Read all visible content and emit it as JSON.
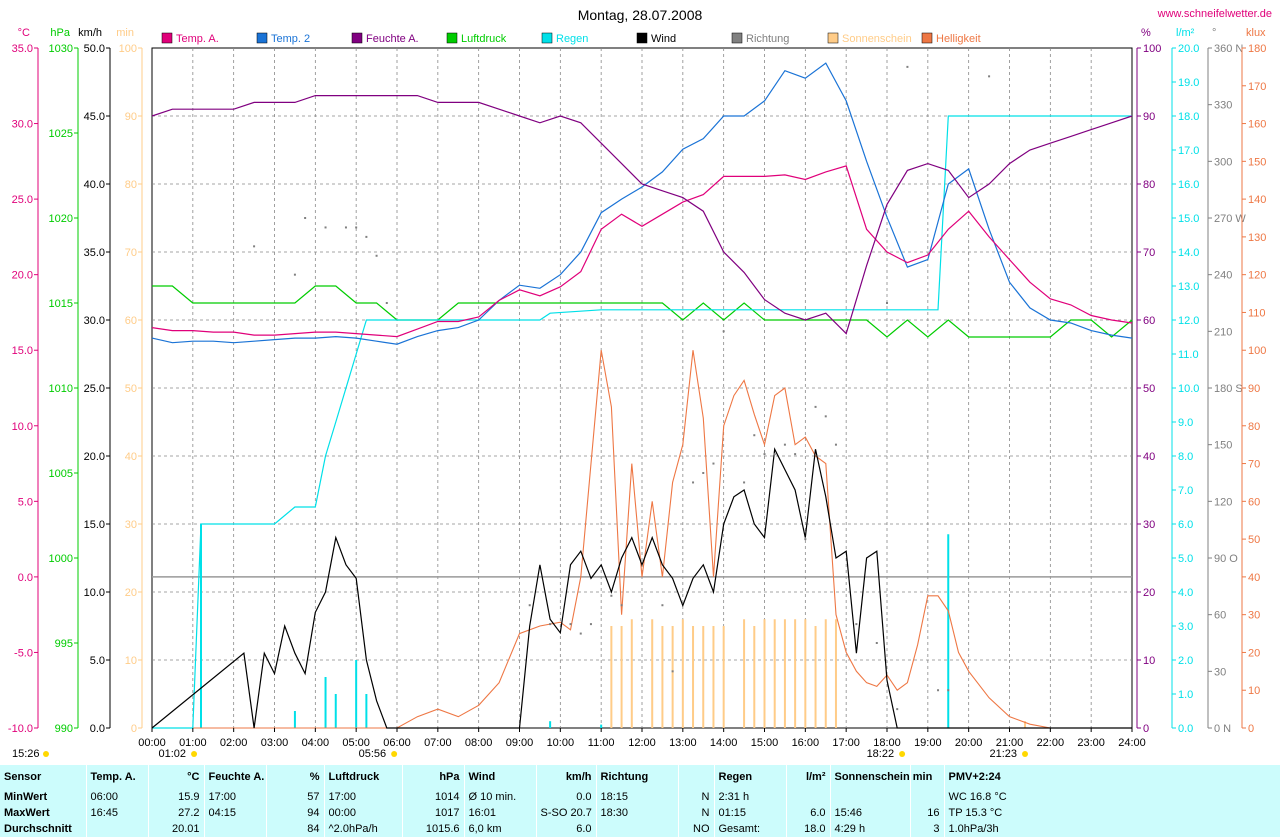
{
  "title": "Montag, 28.07.2008",
  "website": "www.schneifelwetter.de",
  "colors": {
    "temp_a": "#e0007a",
    "temp_2": "#1a73d6",
    "feuchte": "#800080",
    "luftdruck": "#00cc00",
    "regen": "#00e0e8",
    "wind": "#000000",
    "richtung": "#808080",
    "sonnenschein": "#ffcc88",
    "helligkeit": "#ee7744"
  },
  "legend": [
    {
      "label": "Temp. A.",
      "color": "#e0007a"
    },
    {
      "label": "Temp. 2",
      "color": "#1a73d6"
    },
    {
      "label": "Feuchte A.",
      "color": "#800080"
    },
    {
      "label": "Luftdruck",
      "color": "#00cc00"
    },
    {
      "label": "Regen",
      "color": "#00e0e8"
    },
    {
      "label": "Wind",
      "color": "#000000"
    },
    {
      "label": "Richtung",
      "color": "#808080"
    },
    {
      "label": "Sonnenschein",
      "color": "#ffcc88"
    },
    {
      "label": "Helligkeit",
      "color": "#ee7744"
    }
  ],
  "left_axes": [
    {
      "unit": "°C",
      "color": "#e0007a",
      "ticks": [
        "35.0",
        "30.0",
        "25.0",
        "20.0",
        "15.0",
        "10.0",
        "5.0",
        "0.0",
        "-5.0",
        "-10.0"
      ]
    },
    {
      "unit": "hPa",
      "color": "#00cc00",
      "ticks": [
        "1030",
        "1025",
        "1020",
        "1015",
        "1010",
        "1005",
        "1000",
        "995",
        "990"
      ]
    },
    {
      "unit": "km/h",
      "color": "#000000",
      "ticks": [
        "50.0",
        "45.0",
        "40.0",
        "35.0",
        "30.0",
        "25.0",
        "20.0",
        "15.0",
        "10.0",
        "5.0",
        "0.0"
      ]
    },
    {
      "unit": "min",
      "color": "#ffcc88",
      "ticks": [
        "100",
        "90",
        "80",
        "70",
        "60",
        "50",
        "40",
        "30",
        "20",
        "10",
        "0"
      ]
    }
  ],
  "right_axes": [
    {
      "unit": "%",
      "color": "#800080",
      "ticks": [
        "100",
        "90",
        "80",
        "70",
        "60",
        "50",
        "40",
        "30",
        "20",
        "10",
        "0"
      ]
    },
    {
      "unit": "l/m²",
      "color": "#00e0e8",
      "ticks": [
        "20.0",
        "19.0",
        "18.0",
        "17.0",
        "16.0",
        "15.0",
        "14.0",
        "13.0",
        "12.0",
        "11.0",
        "10.0",
        "9.0",
        "8.0",
        "7.0",
        "6.0",
        "5.0",
        "4.0",
        "3.0",
        "2.0",
        "1.0",
        "0.0"
      ]
    },
    {
      "unit": "°",
      "color": "#808080",
      "ticks": [
        "360 N",
        "330",
        "300",
        "270 W",
        "240",
        "210",
        "180 S",
        "150",
        "120",
        "90 O",
        "60",
        "30",
        "0 N"
      ]
    },
    {
      "unit": "klux",
      "color": "#ee7744",
      "ticks": [
        "180",
        "170",
        "160",
        "150",
        "140",
        "130",
        "120",
        "110",
        "100",
        "90",
        "80",
        "70",
        "60",
        "50",
        "40",
        "30",
        "20",
        "10",
        "0"
      ]
    }
  ],
  "x_ticks": [
    "00:00",
    "01:00",
    "02:00",
    "03:00",
    "04:00",
    "05:00",
    "06:00",
    "07:00",
    "08:00",
    "09:00",
    "10:00",
    "11:00",
    "12:00",
    "13:00",
    "14:00",
    "15:00",
    "16:00",
    "17:00",
    "18:00",
    "19:00",
    "20:00",
    "21:00",
    "22:00",
    "23:00",
    "24:00"
  ],
  "astro": [
    {
      "label": "15:26",
      "hour": -1.0
    },
    {
      "label": "01:02",
      "hour": 1.03
    },
    {
      "label": "05:56",
      "hour": 5.93
    },
    {
      "label": "18:22",
      "hour": 18.37
    },
    {
      "label": "21:23",
      "hour": 21.38
    }
  ],
  "chart_data": {
    "type": "line",
    "x_range_hours": [
      0,
      24
    ],
    "series": [
      {
        "name": "Temp. A.",
        "axis": "°C",
        "range": [
          -10,
          35
        ],
        "x": [
          0,
          0.5,
          1,
          1.5,
          2,
          2.5,
          3,
          3.5,
          4,
          4.5,
          5,
          5.5,
          6,
          6.5,
          7,
          7.5,
          8,
          8.5,
          9,
          9.5,
          10,
          10.5,
          11,
          11.5,
          12,
          12.5,
          13,
          13.5,
          14,
          14.5,
          15,
          15.5,
          16,
          16.5,
          17,
          17.5,
          18,
          18.5,
          19,
          19.5,
          20,
          20.5,
          21,
          21.5,
          22,
          22.5,
          23,
          23.5,
          24
        ],
        "y": [
          16.5,
          16.3,
          16.3,
          16.2,
          16.2,
          16.0,
          16.0,
          16.1,
          16.2,
          16.2,
          16.1,
          16.0,
          15.9,
          16.4,
          16.9,
          16.9,
          17.2,
          18.3,
          19.0,
          18.6,
          19.2,
          20.2,
          23.0,
          24.0,
          23.2,
          24.0,
          24.8,
          25.3,
          26.5,
          26.5,
          26.5,
          26.6,
          26.3,
          26.8,
          27.2,
          23.0,
          21.5,
          20.8,
          21.3,
          23.0,
          24.2,
          22.5,
          21.0,
          19.5,
          18.4,
          18.0,
          17.3,
          17.0,
          16.8
        ]
      },
      {
        "name": "Temp. 2",
        "axis": "°C",
        "range": [
          -10,
          35
        ],
        "x": [
          0,
          0.5,
          1,
          1.5,
          2,
          2.5,
          3,
          3.5,
          4,
          4.5,
          5,
          5.5,
          6,
          6.5,
          7,
          7.5,
          8,
          8.5,
          9,
          9.5,
          10,
          10.5,
          11,
          11.5,
          12,
          12.5,
          13,
          13.5,
          14,
          14.5,
          15,
          15.5,
          16,
          16.5,
          17,
          17.5,
          18,
          18.5,
          19,
          19.5,
          20,
          20.5,
          21,
          21.5,
          22,
          22.5,
          23,
          23.5,
          24
        ],
        "y": [
          15.8,
          15.5,
          15.6,
          15.6,
          15.5,
          15.6,
          15.7,
          15.8,
          15.8,
          15.9,
          15.8,
          15.6,
          15.4,
          15.9,
          16.3,
          16.5,
          17.0,
          18.3,
          19.3,
          19.1,
          20.0,
          21.5,
          24.1,
          25.0,
          25.8,
          26.8,
          28.3,
          29.0,
          30.5,
          30.5,
          31.5,
          33.5,
          33.0,
          34.0,
          31.5,
          27.5,
          23.8,
          20.5,
          21.0,
          26.0,
          27.0,
          23.0,
          19.5,
          17.8,
          17.0,
          16.8,
          16.3,
          16.0,
          15.8
        ]
      },
      {
        "name": "Feuchte A.",
        "axis": "%",
        "range": [
          0,
          100
        ],
        "x": [
          0,
          0.5,
          1,
          1.5,
          2,
          2.5,
          3,
          3.5,
          4,
          4.5,
          5,
          5.5,
          6,
          6.5,
          7,
          7.5,
          8,
          8.5,
          9,
          9.5,
          10,
          10.5,
          11,
          11.5,
          12,
          12.5,
          13,
          13.5,
          14,
          14.5,
          15,
          15.5,
          16,
          16.5,
          17,
          17.5,
          18,
          18.5,
          19,
          19.5,
          20,
          20.5,
          21,
          21.5,
          22,
          22.5,
          23,
          23.5,
          24
        ],
        "y": [
          90,
          91,
          91,
          91,
          91,
          92,
          92,
          92,
          93,
          93,
          93,
          93,
          93,
          93,
          92,
          92,
          92,
          91,
          90,
          89,
          90,
          89,
          86,
          83,
          80,
          79,
          78,
          76,
          70,
          67,
          63,
          61,
          60,
          61,
          58,
          68,
          77,
          82,
          83,
          82,
          78,
          80,
          83,
          85,
          86,
          87,
          88,
          89,
          90
        ]
      },
      {
        "name": "Luftdruck",
        "axis": "hPa",
        "range": [
          990,
          1030
        ],
        "x": [
          0,
          0.5,
          1,
          1.5,
          2,
          2.5,
          3,
          3.5,
          4,
          4.5,
          5,
          5.5,
          6,
          6.5,
          7,
          7.5,
          8,
          8.5,
          9,
          9.5,
          10,
          10.5,
          11,
          11.5,
          12,
          12.5,
          13,
          13.5,
          14,
          14.5,
          15,
          15.5,
          16,
          16.5,
          17,
          17.5,
          18,
          18.5,
          19,
          19.5,
          20,
          20.5,
          21,
          21.5,
          22,
          22.5,
          23,
          23.5,
          24
        ],
        "y": [
          1016,
          1016,
          1015,
          1015,
          1015,
          1015,
          1015,
          1015,
          1016,
          1016,
          1015,
          1015,
          1014,
          1014,
          1014,
          1015,
          1015,
          1015,
          1015,
          1015,
          1015,
          1015,
          1015,
          1015,
          1015,
          1015,
          1014,
          1015,
          1014,
          1015,
          1014,
          1014,
          1014,
          1014,
          1014,
          1014,
          1013,
          1014,
          1013,
          1014,
          1013,
          1013,
          1013,
          1013,
          1013,
          1014,
          1014,
          1013,
          1014
        ]
      },
      {
        "name": "Regen",
        "axis": "l/m²",
        "range": [
          0,
          20
        ],
        "x": [
          0,
          1,
          1.2,
          3,
          3.5,
          4,
          4.25,
          4.5,
          5,
          5.25,
          5.5,
          9.5,
          9.75,
          11,
          18.9,
          19.25,
          19.5,
          24
        ],
        "y": [
          0,
          0,
          6,
          6,
          6.5,
          6.5,
          8,
          9,
          11,
          12,
          12,
          12,
          12.2,
          12.3,
          12.3,
          12.3,
          18,
          18
        ]
      },
      {
        "name": "Wind",
        "axis": "km/h",
        "range": [
          0,
          50
        ],
        "x": [
          0,
          2.25,
          2.5,
          2.75,
          3,
          3.25,
          3.5,
          3.75,
          4,
          4.25,
          4.5,
          4.75,
          5,
          5.25,
          5.5,
          5.75,
          6,
          9,
          9.25,
          9.5,
          9.75,
          10,
          10.25,
          10.5,
          10.75,
          11,
          11.25,
          11.5,
          11.75,
          12,
          12.25,
          12.5,
          12.75,
          13,
          13.25,
          13.5,
          13.75,
          14,
          14.25,
          14.5,
          14.75,
          15,
          15.25,
          15.5,
          15.75,
          16,
          16.25,
          16.5,
          16.75,
          17,
          17.25,
          17.5,
          17.75,
          18,
          18.25,
          18.5,
          18.75,
          19,
          24
        ],
        "y": [
          0,
          5.5,
          0,
          5.5,
          4,
          7.5,
          5.5,
          4,
          8.5,
          10,
          14,
          12,
          11,
          5,
          2,
          0,
          0,
          0,
          7.5,
          12,
          8,
          7,
          12,
          13,
          11,
          12,
          10,
          12.5,
          14,
          12,
          14,
          12,
          11,
          9,
          11,
          12,
          10,
          15,
          17,
          17.5,
          15,
          14,
          20.5,
          19,
          17.5,
          14,
          20.5,
          17,
          12.5,
          13,
          5.5,
          12.5,
          13,
          3.5,
          0,
          0,
          0,
          0,
          0
        ]
      },
      {
        "name": "Helligkeit",
        "axis": "klux",
        "range": [
          0,
          180
        ],
        "x": [
          0,
          6,
          6.5,
          7,
          7.5,
          8,
          8.5,
          9,
          9.5,
          10,
          10.25,
          10.5,
          11,
          11.25,
          11.5,
          11.75,
          12,
          12.25,
          12.5,
          12.75,
          13,
          13.25,
          13.5,
          13.75,
          14,
          14.25,
          14.5,
          14.75,
          15,
          15.25,
          15.5,
          15.75,
          16,
          16.25,
          16.5,
          16.75,
          17,
          17.25,
          17.5,
          17.75,
          18,
          18.25,
          18.5,
          18.75,
          19,
          19.25,
          19.5,
          19.75,
          20,
          20.5,
          21,
          21.5,
          22,
          22.5,
          23,
          24
        ],
        "y": [
          0,
          0,
          3,
          5,
          3,
          6,
          12,
          25,
          27,
          28,
          26,
          40,
          100,
          85,
          30,
          70,
          40,
          60,
          40,
          65,
          75,
          100,
          82,
          40,
          80,
          88,
          92,
          83,
          75,
          88,
          90,
          75,
          77,
          72,
          70,
          30,
          20,
          15,
          12,
          11,
          14,
          10,
          12,
          22,
          35,
          35,
          31,
          20,
          15,
          8,
          3,
          1,
          0,
          0,
          0,
          0
        ]
      },
      {
        "name": "Sonnenschein",
        "axis": "min",
        "range": [
          0,
          100
        ],
        "x": [
          11.25,
          11.5,
          11.75,
          12.25,
          12.5,
          12.75,
          13,
          13.25,
          13.5,
          13.75,
          14,
          14.5,
          14.75,
          15,
          15.25,
          15.5,
          15.75,
          16,
          16.25,
          16.5,
          16.75,
          21.38
        ],
        "y": [
          15,
          15,
          16,
          16,
          15,
          15,
          16,
          15,
          15,
          15,
          15,
          16,
          15,
          16,
          16,
          16,
          16,
          16,
          15,
          16,
          16,
          1
        ]
      },
      {
        "name": "Richtung",
        "axis": "°",
        "range": [
          0,
          360
        ],
        "x": [
          2.5,
          3.5,
          3.75,
          4.25,
          4.75,
          5.0,
          5.25,
          5.5,
          5.75,
          9.25,
          9.75,
          10.25,
          10.5,
          10.75,
          11.25,
          11.5,
          12.5,
          12.75,
          13.25,
          13.5,
          13.75,
          14.0,
          14.5,
          14.75,
          15.0,
          15.25,
          15.5,
          15.75,
          16.0,
          16.25,
          16.5,
          16.75,
          17.25,
          17.75,
          18.0,
          18.25,
          18.5,
          19.25,
          19.5,
          20.5
        ],
        "y": [
          255,
          240,
          270,
          265,
          265,
          265,
          260,
          250,
          225,
          65,
          55,
          55,
          50,
          55,
          70,
          65,
          65,
          30,
          130,
          135,
          140,
          210,
          130,
          155,
          145,
          145,
          150,
          145,
          100,
          170,
          165,
          150,
          55,
          45,
          225,
          10,
          350,
          20,
          20,
          345
        ]
      }
    ]
  },
  "summary": {
    "header": [
      "Sensor",
      "Temp. A.",
      "°C",
      "Feuchte A.",
      "%",
      "Luftdruck",
      "hPa",
      "Wind",
      "km/h",
      "Richtung",
      "",
      "Regen",
      "l/m²",
      "Sonnenschein min",
      "",
      "PMV+2:24"
    ],
    "rows": [
      [
        "MinWert",
        "06:00",
        "15.9",
        "17:00",
        "57",
        "17:00",
        "1014",
        "Ø 10 min.",
        "0.0",
        "18:15",
        "N",
        "2:31 h",
        "",
        "",
        "",
        "WC 16.8 °C"
      ],
      [
        "MaxWert",
        "16:45",
        "27.2",
        "04:15",
        "94",
        "00:00",
        "1017",
        "16:01",
        "S-SO 20.7",
        "18:30",
        "N",
        "01:15",
        "6.0",
        "15:46",
        "16",
        "TP 15.3 °C"
      ],
      [
        "Durchschnitt",
        "",
        "20.01",
        "",
        "84",
        "^2.0hPa/h",
        "1015.6",
        "6,0 km",
        "6.0",
        "",
        "NO",
        "Gesamt:",
        "18.0",
        "4:29 h",
        "3",
        "1.0hPa/3h"
      ]
    ]
  }
}
